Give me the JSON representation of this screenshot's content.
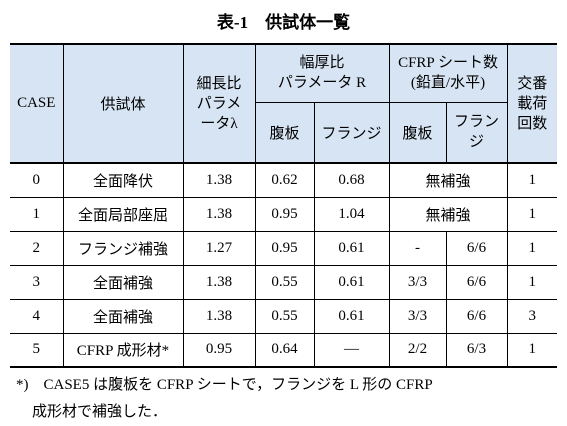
{
  "header": {
    "title": "表-1　供試体一覧"
  },
  "table": {
    "columns": {
      "case": "CASE",
      "specimen": "供試体",
      "slenderness": [
        "細長比",
        "パラメ",
        "ータλ"
      ],
      "width_thickness": [
        "幅厚比",
        "パラメータ R"
      ],
      "wt_web": "腹板",
      "wt_flange": "フランジ",
      "cfrp": [
        "CFRP シート数",
        "(鉛直/水平)"
      ],
      "cfrp_web": "腹板",
      "cfrp_flange": [
        "フラン",
        "ジ"
      ],
      "cycles": [
        "交番",
        "載荷",
        "回数"
      ]
    },
    "rows": [
      [
        "0",
        "全面降伏",
        "1.38",
        "0.62",
        "0.68",
        "無補強",
        "1"
      ],
      [
        "1",
        "全面局部座屈",
        "1.38",
        "0.95",
        "1.04",
        "無補強",
        "1"
      ],
      [
        "2",
        "フランジ補強",
        "1.27",
        "0.95",
        "0.61",
        "-",
        "6/6",
        "1"
      ],
      [
        "3",
        "全面補強",
        "1.38",
        "0.55",
        "0.61",
        "3/3",
        "6/6",
        "1"
      ],
      [
        "4",
        "全面補強",
        "1.38",
        "0.55",
        "0.61",
        "3/3",
        "6/6",
        "3"
      ],
      [
        "5",
        "CFRP 成形材*",
        "0.95",
        "0.64",
        "—",
        "2/2",
        "6/3",
        "1"
      ]
    ]
  },
  "footnote": [
    "*)　CASE5 は腹板を CFRP シートで，フランジを L 形の CFRP",
    "成形材で補強した．"
  ]
}
